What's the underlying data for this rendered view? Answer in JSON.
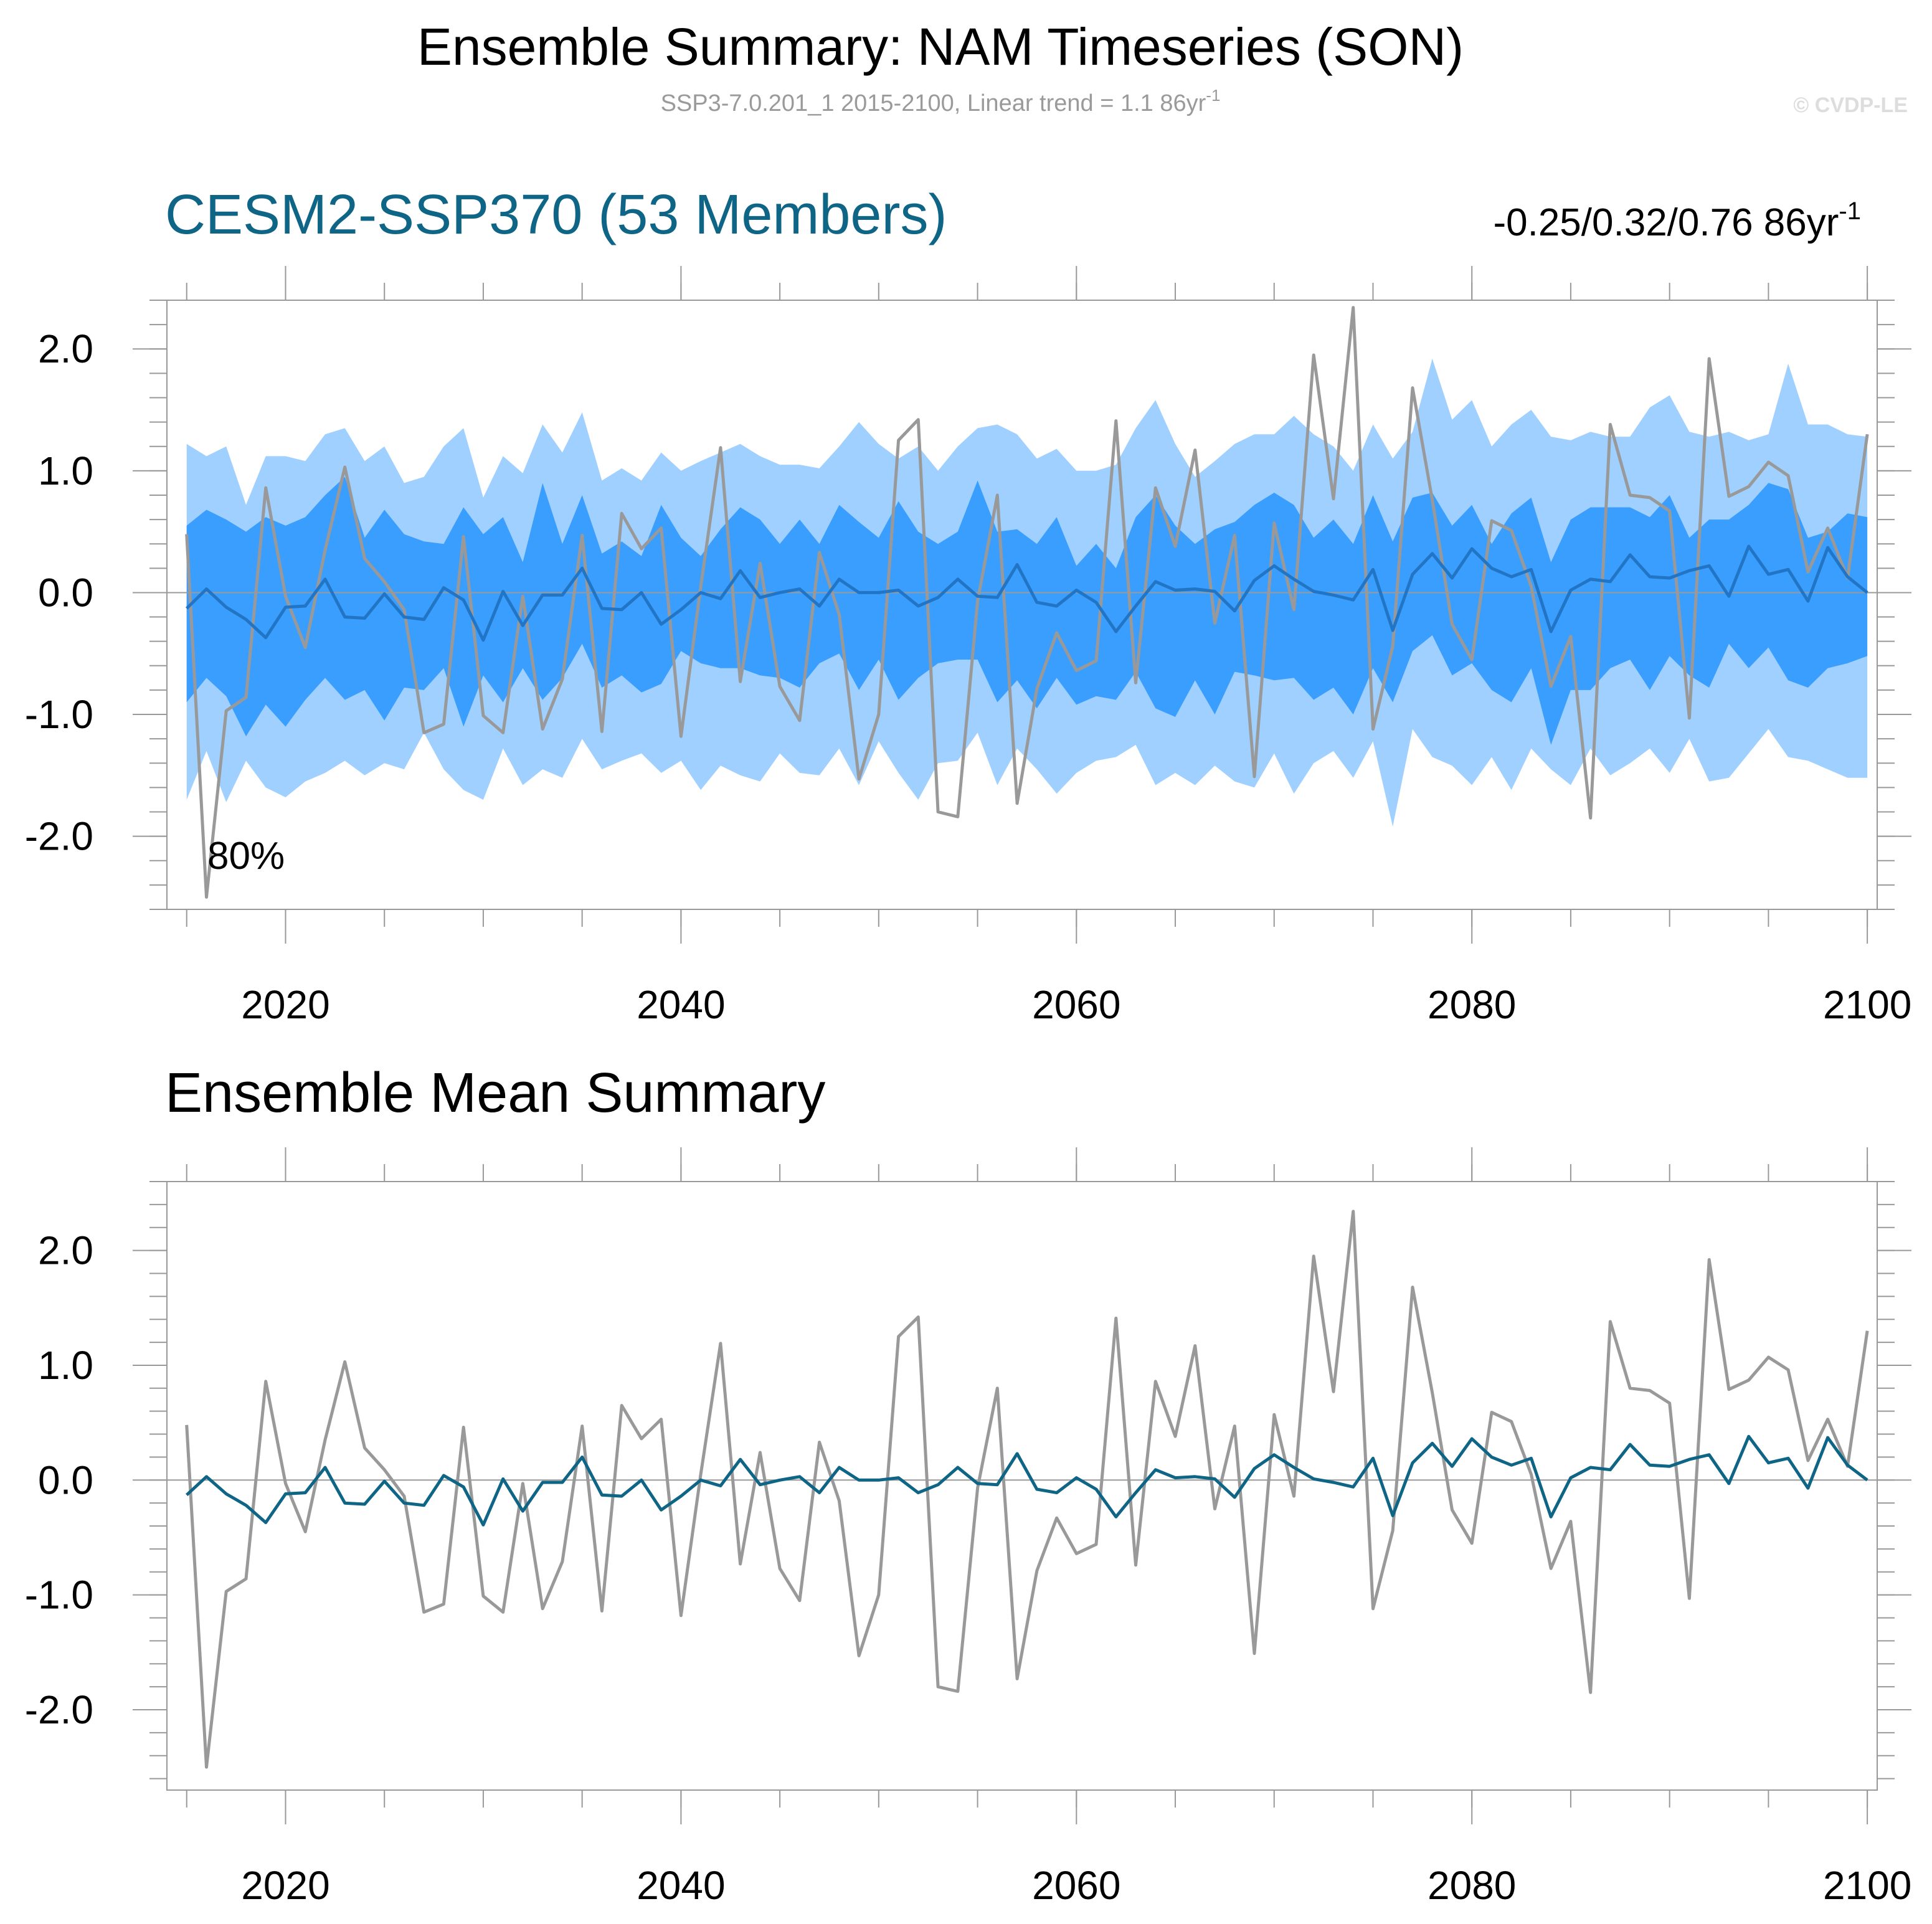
{
  "title": "Ensemble Summary: NAM Timeseries (SON)",
  "subtitle": {
    "text": "SSP3-7.0.201_1 2015-2100, Linear trend = 1.1 86yr",
    "sup": "-1"
  },
  "copyright": "© CVDP-LE",
  "colors": {
    "accent": "#0f6585",
    "obs": "#999999",
    "band_outer": "#9fd0ff",
    "band_inner": "#3a9eff",
    "ens_mean_top": "#2175c4",
    "ens_mean_bottom": "#0f6585",
    "frame": "#999999"
  },
  "chart_data": [
    {
      "type": "area",
      "title": "CESM2-SSP370 (53 Members)",
      "trend_range": {
        "text": "-0.25/0.32/0.76 86yr",
        "sup": "-1"
      },
      "band_label": "80%",
      "xlim": [
        2014,
        2100.5
      ],
      "ylim": [
        -2.6,
        2.4
      ],
      "xticks": [
        2020,
        2040,
        2060,
        2080,
        2100
      ],
      "xtick_labels": [
        "2020",
        "2040",
        "2060",
        "2080",
        "2100"
      ],
      "yticks": [
        2.0,
        1.0,
        0.0,
        -1.0,
        -2.0
      ],
      "ytick_labels": [
        "2.0",
        "1.0",
        "0.0",
        "-1.0",
        "-2.0"
      ],
      "x_start": 2015,
      "zero_line": 0,
      "series": [
        {
          "name": "Observed (SSP3-7.0.201_1)",
          "values": [
            0.48,
            -2.5,
            -0.97,
            -0.86,
            0.86,
            -0.03,
            -0.45,
            0.35,
            1.03,
            0.28,
            0.09,
            -0.14,
            -1.15,
            -1.08,
            0.46,
            -1.01,
            -1.15,
            -0.03,
            -1.12,
            -0.71,
            0.47,
            -1.14,
            0.65,
            0.36,
            0.53,
            -1.18,
            0.05,
            1.19,
            -0.73,
            0.24,
            -0.77,
            -1.05,
            0.33,
            -0.18,
            -1.53,
            -1.0,
            1.25,
            1.42,
            -1.8,
            -1.84,
            -0.07,
            0.8,
            -1.73,
            -0.79,
            -0.33,
            -0.64,
            -0.56,
            1.41,
            -0.74,
            0.86,
            0.38,
            1.17,
            -0.25,
            0.47,
            -1.51,
            0.57,
            -0.14,
            1.95,
            0.77,
            2.34,
            -1.12,
            -0.44,
            1.68,
            0.76,
            -0.26,
            -0.55,
            0.59,
            0.51,
            0.05,
            -0.77,
            -0.36,
            -1.85,
            1.38,
            0.8,
            0.78,
            0.67,
            -1.03,
            1.92,
            0.79,
            0.87,
            1.07,
            0.96,
            0.17,
            0.53,
            0.12,
            1.3
          ]
        },
        {
          "name": "Ensemble Mean",
          "values": [
            -0.13,
            0.03,
            -0.12,
            -0.22,
            -0.37,
            -0.12,
            -0.11,
            0.11,
            -0.2,
            -0.21,
            -0.01,
            -0.2,
            -0.22,
            0.04,
            -0.06,
            -0.39,
            0.01,
            -0.27,
            -0.02,
            -0.02,
            0.2,
            -0.13,
            -0.14,
            0.0,
            -0.26,
            -0.14,
            0.0,
            -0.05,
            0.18,
            -0.04,
            0.0,
            0.03,
            -0.11,
            0.11,
            0.0,
            0.0,
            0.02,
            -0.11,
            -0.04,
            0.11,
            -0.03,
            -0.04,
            0.23,
            -0.08,
            -0.11,
            0.02,
            -0.08,
            -0.32,
            -0.11,
            0.09,
            0.02,
            0.03,
            0.01,
            -0.15,
            0.1,
            0.22,
            0.11,
            0.01,
            -0.02,
            -0.06,
            0.19,
            -0.31,
            0.15,
            0.32,
            0.12,
            0.36,
            0.2,
            0.13,
            0.19,
            -0.32,
            0.02,
            0.11,
            0.09,
            0.31,
            0.13,
            0.12,
            0.18,
            0.22,
            -0.03,
            0.38,
            0.15,
            0.19,
            -0.07,
            0.37,
            0.13,
            0.0
          ]
        },
        {
          "name": "Band outer upper",
          "values": [
            1.22,
            1.12,
            1.2,
            0.72,
            1.12,
            1.12,
            1.08,
            1.3,
            1.35,
            1.08,
            1.2,
            0.9,
            0.95,
            1.2,
            1.35,
            0.78,
            1.12,
            0.98,
            1.38,
            1.15,
            1.48,
            0.92,
            1.02,
            0.92,
            1.15,
            1.0,
            1.08,
            1.15,
            1.22,
            1.12,
            1.05,
            1.05,
            1.02,
            1.2,
            1.4,
            1.22,
            1.1,
            1.2,
            1.0,
            1.2,
            1.35,
            1.38,
            1.3,
            1.1,
            1.18,
            1.0,
            1.0,
            1.05,
            1.35,
            1.58,
            1.22,
            0.95,
            1.08,
            1.22,
            1.3,
            1.3,
            1.45,
            1.3,
            1.2,
            1.0,
            1.38,
            1.1,
            1.32,
            1.92,
            1.42,
            1.58,
            1.2,
            1.38,
            1.5,
            1.28,
            1.25,
            1.32,
            1.28,
            1.28,
            1.52,
            1.62,
            1.32,
            1.28,
            1.32,
            1.25,
            1.3,
            1.88,
            1.38,
            1.38,
            1.3,
            1.28
          ]
        },
        {
          "name": "Band inner upper",
          "values": [
            0.55,
            0.68,
            0.6,
            0.5,
            0.62,
            0.55,
            0.62,
            0.8,
            0.95,
            0.45,
            0.68,
            0.48,
            0.42,
            0.4,
            0.7,
            0.48,
            0.62,
            0.25,
            0.9,
            0.4,
            0.8,
            0.32,
            0.42,
            0.3,
            0.72,
            0.45,
            0.3,
            0.52,
            0.7,
            0.6,
            0.4,
            0.6,
            0.4,
            0.72,
            0.58,
            0.45,
            0.75,
            0.5,
            0.4,
            0.5,
            0.92,
            0.5,
            0.52,
            0.4,
            0.62,
            0.22,
            0.4,
            0.2,
            0.62,
            0.8,
            0.55,
            0.4,
            0.52,
            0.58,
            0.72,
            0.82,
            0.72,
            0.45,
            0.6,
            0.4,
            0.8,
            0.42,
            0.78,
            0.82,
            0.55,
            0.72,
            0.4,
            0.65,
            0.78,
            0.25,
            0.6,
            0.7,
            0.7,
            0.7,
            0.62,
            0.8,
            0.45,
            0.6,
            0.6,
            0.72,
            0.9,
            0.85,
            0.45,
            0.5,
            0.65,
            0.62
          ]
        },
        {
          "name": "Band inner lower",
          "values": [
            -0.9,
            -0.7,
            -0.85,
            -1.18,
            -0.92,
            -1.1,
            -0.88,
            -0.7,
            -0.88,
            -0.8,
            -1.05,
            -0.78,
            -0.8,
            -0.62,
            -1.1,
            -0.68,
            -0.9,
            -0.62,
            -0.88,
            -0.7,
            -0.42,
            -0.78,
            -0.68,
            -0.82,
            -0.75,
            -0.48,
            -0.58,
            -0.62,
            -0.62,
            -0.68,
            -0.7,
            -0.78,
            -0.58,
            -0.5,
            -0.8,
            -0.55,
            -0.88,
            -0.7,
            -0.58,
            -0.55,
            -0.55,
            -0.9,
            -0.72,
            -0.95,
            -0.7,
            -0.92,
            -0.85,
            -0.88,
            -0.65,
            -0.95,
            -1.02,
            -0.72,
            -1.0,
            -0.65,
            -0.68,
            -0.72,
            -0.7,
            -0.88,
            -0.78,
            -1.0,
            -0.62,
            -0.9,
            -0.48,
            -0.35,
            -0.68,
            -0.58,
            -0.8,
            -0.9,
            -0.62,
            -1.25,
            -0.8,
            -0.8,
            -0.62,
            -0.55,
            -0.8,
            -0.52,
            -0.68,
            -0.78,
            -0.42,
            -0.62,
            -0.45,
            -0.72,
            -0.78,
            -0.62,
            -0.58,
            -0.52
          ]
        },
        {
          "name": "Band outer lower",
          "values": [
            -1.7,
            -1.3,
            -1.72,
            -1.38,
            -1.6,
            -1.68,
            -1.55,
            -1.48,
            -1.38,
            -1.5,
            -1.4,
            -1.45,
            -1.15,
            -1.45,
            -1.62,
            -1.7,
            -1.28,
            -1.58,
            -1.45,
            -1.52,
            -1.2,
            -1.45,
            -1.38,
            -1.32,
            -1.48,
            -1.38,
            -1.62,
            -1.42,
            -1.5,
            -1.55,
            -1.32,
            -1.48,
            -1.5,
            -1.28,
            -1.58,
            -1.22,
            -1.48,
            -1.7,
            -1.4,
            -1.38,
            -1.15,
            -1.58,
            -1.28,
            -1.45,
            -1.65,
            -1.48,
            -1.38,
            -1.35,
            -1.25,
            -1.58,
            -1.48,
            -1.58,
            -1.42,
            -1.55,
            -1.6,
            -1.32,
            -1.65,
            -1.4,
            -1.3,
            -1.52,
            -1.22,
            -1.92,
            -1.12,
            -1.35,
            -1.42,
            -1.58,
            -1.35,
            -1.62,
            -1.28,
            -1.45,
            -1.58,
            -1.28,
            -1.5,
            -1.4,
            -1.28,
            -1.48,
            -1.2,
            -1.55,
            -1.52,
            -1.32,
            -1.12,
            -1.35,
            -1.38,
            -1.45,
            -1.52,
            -1.52
          ]
        }
      ]
    },
    {
      "type": "line",
      "title": "Ensemble Mean Summary",
      "xlim": [
        2014,
        2100.5
      ],
      "ylim": [
        -2.7,
        2.6
      ],
      "xticks": [
        2020,
        2040,
        2060,
        2080,
        2100
      ],
      "xtick_labels": [
        "2020",
        "2040",
        "2060",
        "2080",
        "2100"
      ],
      "yticks": [
        2.0,
        1.0,
        0.0,
        -1.0,
        -2.0
      ],
      "ytick_labels": [
        "2.0",
        "1.0",
        "0.0",
        "-1.0",
        "-2.0"
      ],
      "x_start": 2015,
      "zero_line": 0,
      "series_ref": [
        "Observed (SSP3-7.0.201_1)",
        "Ensemble Mean"
      ]
    }
  ]
}
